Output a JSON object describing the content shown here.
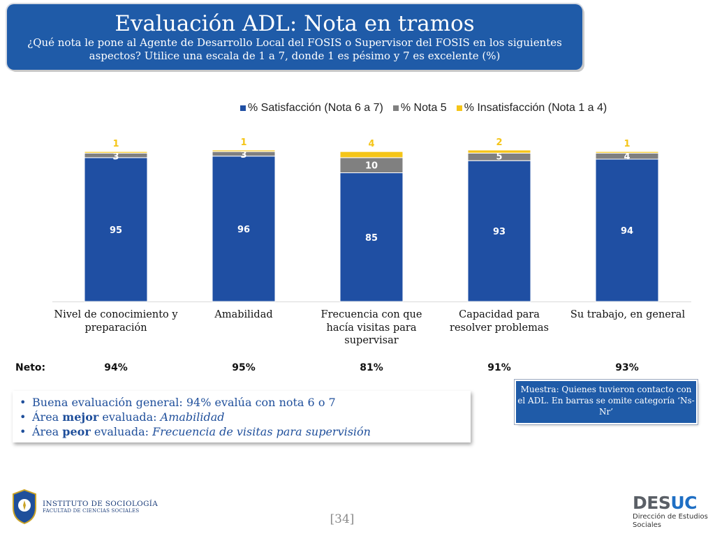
{
  "header": {
    "title": "Evaluación ADL: Nota en tramos",
    "subtitle": "¿Qué nota le pone al Agente de Desarrollo Local del FOSIS o Supervisor del FOSIS en los siguientes aspectos? Utilice una escala de 1 a 7, donde 1 es pésimo y 7 es excelente (%)"
  },
  "colors": {
    "sat": "#1f4fa3",
    "nota5": "#808080",
    "insat": "#f5c518",
    "title_bg": "#1f5ba8"
  },
  "chart_data": {
    "type": "bar",
    "stacked": true,
    "categories": [
      "Nivel de conocimiento y preparación",
      "Amabilidad",
      "Frecuencia con que hacía visitas para supervisar",
      "Capacidad para resolver problemas",
      "Su trabajo, en general"
    ],
    "series": [
      {
        "name": "% Satisfacción (Nota 6 a 7)",
        "values": [
          95,
          96,
          85,
          93,
          94
        ]
      },
      {
        "name": "% Nota 5",
        "values": [
          3,
          3,
          10,
          5,
          4
        ]
      },
      {
        "name": "% Insatisfacción (Nota 1 a 4)",
        "values": [
          1,
          1,
          4,
          2,
          1
        ]
      }
    ],
    "legend_position": "top",
    "grid": false
  },
  "neto": {
    "label": "Neto:",
    "values": [
      "94%",
      "95%",
      "81%",
      "91%",
      "93%"
    ]
  },
  "bullets": {
    "b1": "Buena evaluación general: 94% evalúa con nota 6 o 7",
    "b2_pre": "Área ",
    "b2_bold": "mejor",
    "b2_mid": " evaluada: ",
    "b2_it": "Amabilidad",
    "b3_pre": "Área ",
    "b3_bold": "peor",
    "b3_mid": " evaluada: ",
    "b3_it": "Frecuencia de visitas para supervisión"
  },
  "note": "Muestra: Quienes tuvieron contacto con el ADL. En barras se omite categoría ‘Ns-Nr’",
  "footer": {
    "institute": "INSTITUTO DE SOCIOLOGÍA",
    "faculty": "FACULTAD DE CIENCIAS SOCIALES",
    "page": "[34]",
    "desuc_a": "DES",
    "desuc_b": "UC",
    "desuc_sub1": "Dirección de Estudios",
    "desuc_sub2": "Sociales"
  }
}
